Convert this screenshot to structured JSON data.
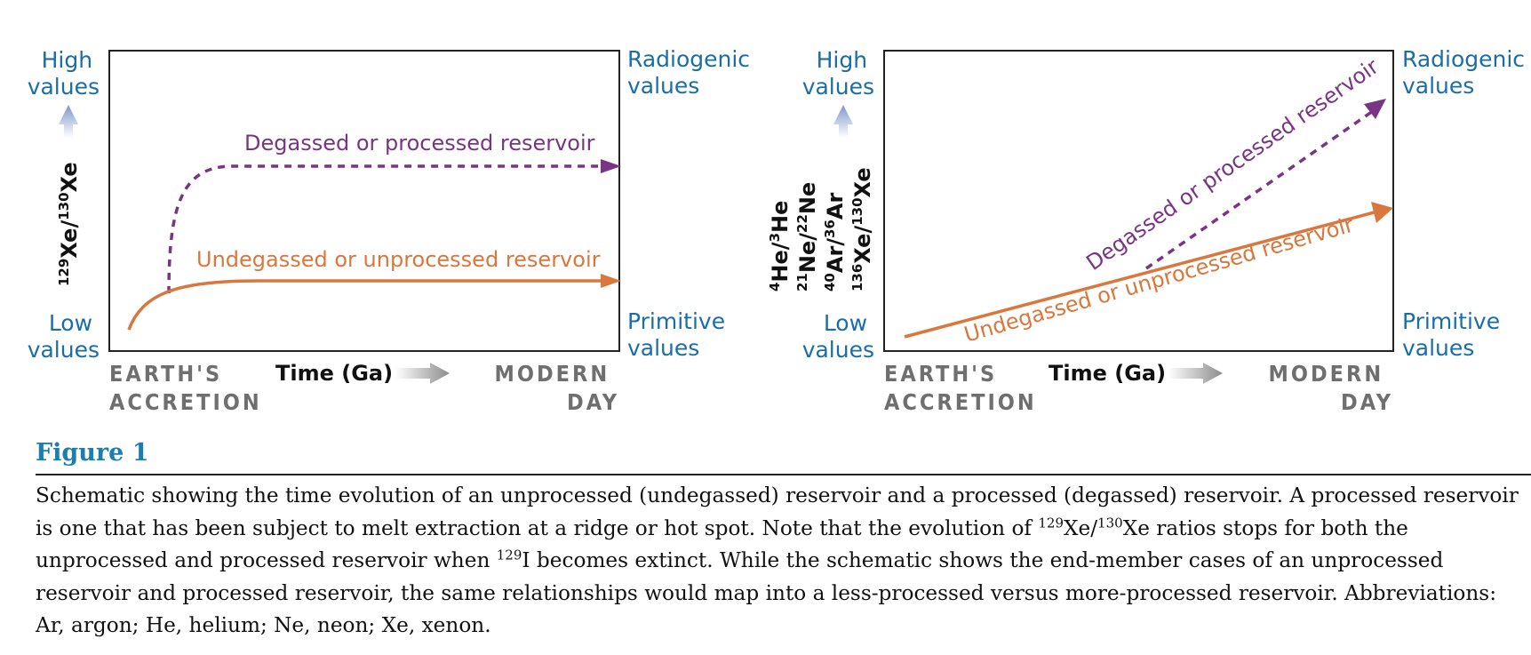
{
  "colors": {
    "label_blue": "#1a6ea8",
    "degassed_purple": "#7a3486",
    "undegassed_orange": "#d9773c",
    "gray_label": "#6f6f6f",
    "caption_title": "#1a7fb0"
  },
  "panels": [
    {
      "y_axis": {
        "high_line1": "High",
        "high_line2": "values",
        "low_line1": "Low",
        "low_line2": "values",
        "ratios": [
          {
            "sup1": "129",
            "base1": "Xe/",
            "sup2": "130",
            "base2": "Xe"
          }
        ]
      },
      "right_axis": {
        "top_line1": "Radiogenic",
        "top_line2": "values",
        "bottom_line1": "Primitive",
        "bottom_line2": "values"
      },
      "x_axis": {
        "left_line1": "EARTH'S",
        "left_line2": "ACCRETION",
        "time_label": "Time (Ga)",
        "right_line1": "MODERN",
        "right_line2": "DAY"
      },
      "degassed_label": "Degassed or processed reservoir",
      "undegassed_label": "Undegassed or unprocessed reservoir"
    },
    {
      "y_axis": {
        "high_line1": "High",
        "high_line2": "values",
        "low_line1": "Low",
        "low_line2": "values",
        "ratios": [
          {
            "sup1": "4",
            "base1": "He/",
            "sup2": "3",
            "base2": "He"
          },
          {
            "sup1": "21",
            "base1": "Ne/",
            "sup2": "22",
            "base2": "Ne"
          },
          {
            "sup1": "40",
            "base1": "Ar/",
            "sup2": "36",
            "base2": "Ar"
          },
          {
            "sup1": "136",
            "base1": "Xe/",
            "sup2": "130",
            "base2": "Xe"
          }
        ]
      },
      "right_axis": {
        "top_line1": "Radiogenic",
        "top_line2": "values",
        "bottom_line1": "Primitive",
        "bottom_line2": "values"
      },
      "x_axis": {
        "left_line1": "EARTH'S",
        "left_line2": "ACCRETION",
        "time_label": "Time (Ga)",
        "right_line1": "MODERN",
        "right_line2": "DAY"
      },
      "degassed_label": "Degassed or processed reservoir",
      "undegassed_label": "Undegassed or unprocessed reservoir"
    }
  ],
  "caption": {
    "title": "Figure 1",
    "t1": "Schematic showing the time evolution of an unprocessed (undegassed) reservoir and a processed (degassed) reservoir. A processed reservoir is one that has been subject to melt extraction at a ridge or hot spot. Note that the evolution of ",
    "sup1": "129",
    "t2": "Xe/",
    "sup2": "130",
    "t3": "Xe ratios stops for both the unprocessed and processed reservoir when ",
    "sup3": "129",
    "t4": "I becomes extinct. While the schematic shows the end-member cases of an unprocessed reservoir and processed reservoir, the same relationships would map into a less-processed versus more-processed reservoir. Abbreviations: Ar, argon; He, helium; Ne, neon; Xe, xenon."
  }
}
